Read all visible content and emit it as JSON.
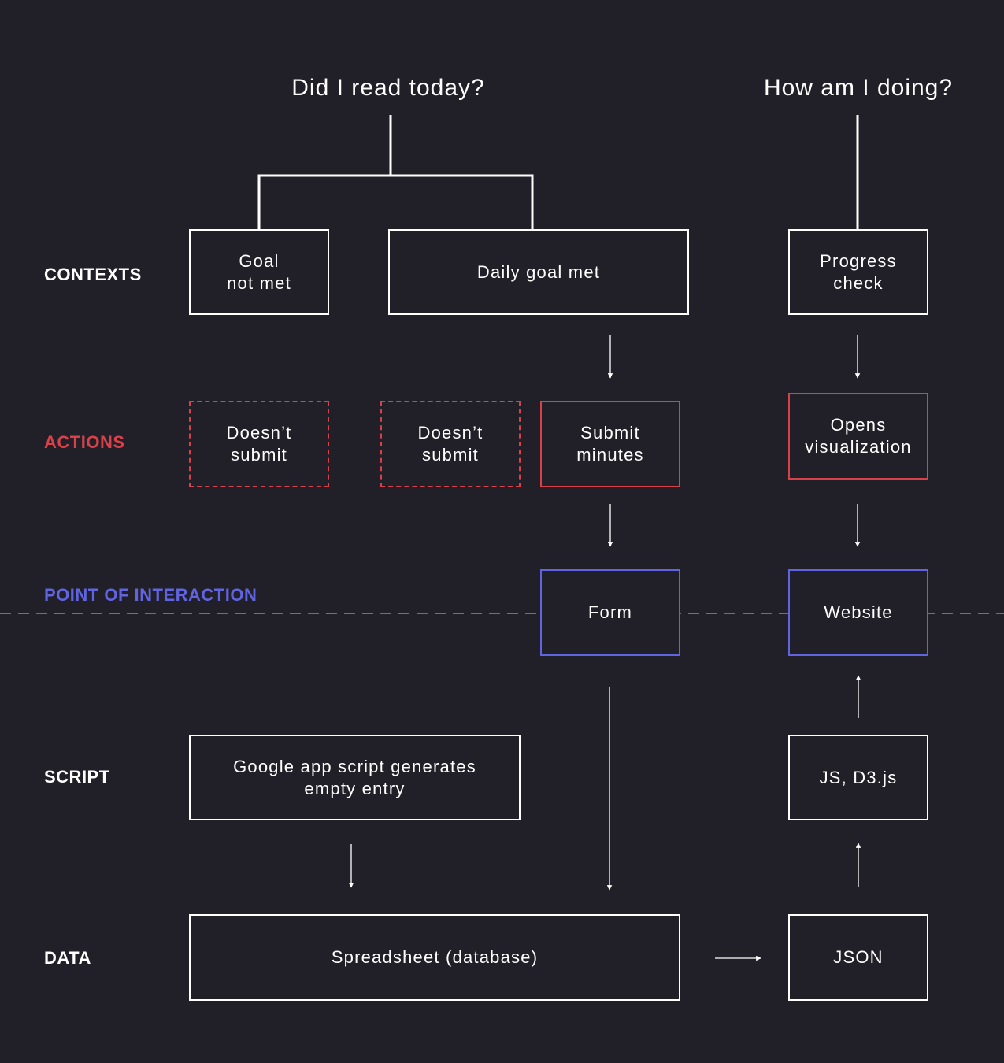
{
  "colors": {
    "background": "#211f27",
    "line": "#ffffff",
    "actions": "#d9414a",
    "interaction": "#6164e0"
  },
  "questions": {
    "daily": "Did I read today?",
    "progress": "How am I doing?"
  },
  "rows": {
    "contexts": "CONTEXTS",
    "actions": "ACTIONS",
    "interaction": "POINT OF INTERACTION",
    "script": "SCRIPT",
    "data": "DATA"
  },
  "nodes": {
    "goal_not_met": "Goal\nnot met",
    "daily_goal_met": "Daily goal met",
    "progress_check": "Progress\ncheck",
    "doesnt_submit_1": "Doesn’t\nsubmit",
    "doesnt_submit_2": "Doesn’t\nsubmit",
    "submit_minutes": "Submit\nminutes",
    "opens_visualization": "Opens\nvisualization",
    "form": "Form",
    "website": "Website",
    "google_script": "Google app script generates\nempty entry",
    "js_d3": "JS, D3.js",
    "spreadsheet": "Spreadsheet (database)",
    "json": "JSON"
  }
}
